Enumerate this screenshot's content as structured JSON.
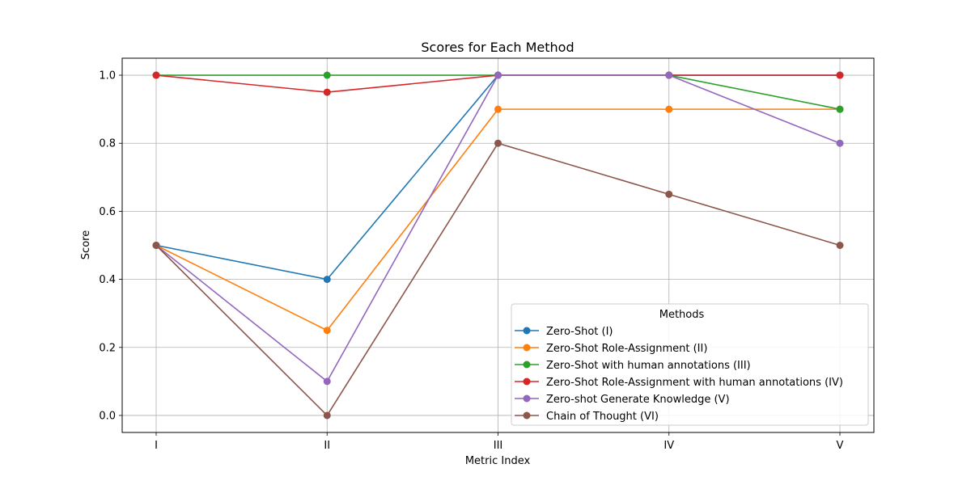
{
  "chart_data": {
    "type": "line",
    "title": "Scores for Each Method",
    "xlabel": "Metric Index",
    "ylabel": "Score",
    "categories": [
      "I",
      "II",
      "III",
      "IV",
      "V"
    ],
    "ylim": [
      -0.05,
      1.05
    ],
    "yticks": [
      0.0,
      0.2,
      0.4,
      0.6,
      0.8,
      1.0
    ],
    "ytick_labels": [
      "0.0",
      "0.2",
      "0.4",
      "0.6",
      "0.8",
      "1.0"
    ],
    "grid": true,
    "legend": {
      "title": "Methods",
      "placement": "lower-right"
    },
    "series": [
      {
        "name": "Zero-Shot (I)",
        "color": "#1f77b4",
        "values": [
          0.5,
          0.4,
          1.0,
          1.0,
          1.0
        ]
      },
      {
        "name": "Zero-Shot Role-Assignment (II)",
        "color": "#ff7f0e",
        "values": [
          0.5,
          0.25,
          0.9,
          0.9,
          0.9
        ]
      },
      {
        "name": "Zero-Shot with human annotations (III)",
        "color": "#2ca02c",
        "values": [
          1.0,
          1.0,
          1.0,
          1.0,
          0.9
        ]
      },
      {
        "name": "Zero-Shot Role-Assignment with human annotations (IV)",
        "color": "#d62728",
        "values": [
          1.0,
          0.95,
          1.0,
          1.0,
          1.0
        ]
      },
      {
        "name": "Zero-shot Generate Knowledge (V)",
        "color": "#9467bd",
        "values": [
          0.5,
          0.1,
          1.0,
          1.0,
          0.8
        ]
      },
      {
        "name": "Chain of Thought (VI)",
        "color": "#8c564b",
        "values": [
          0.5,
          0.0,
          0.8,
          0.65,
          0.5
        ]
      }
    ]
  }
}
